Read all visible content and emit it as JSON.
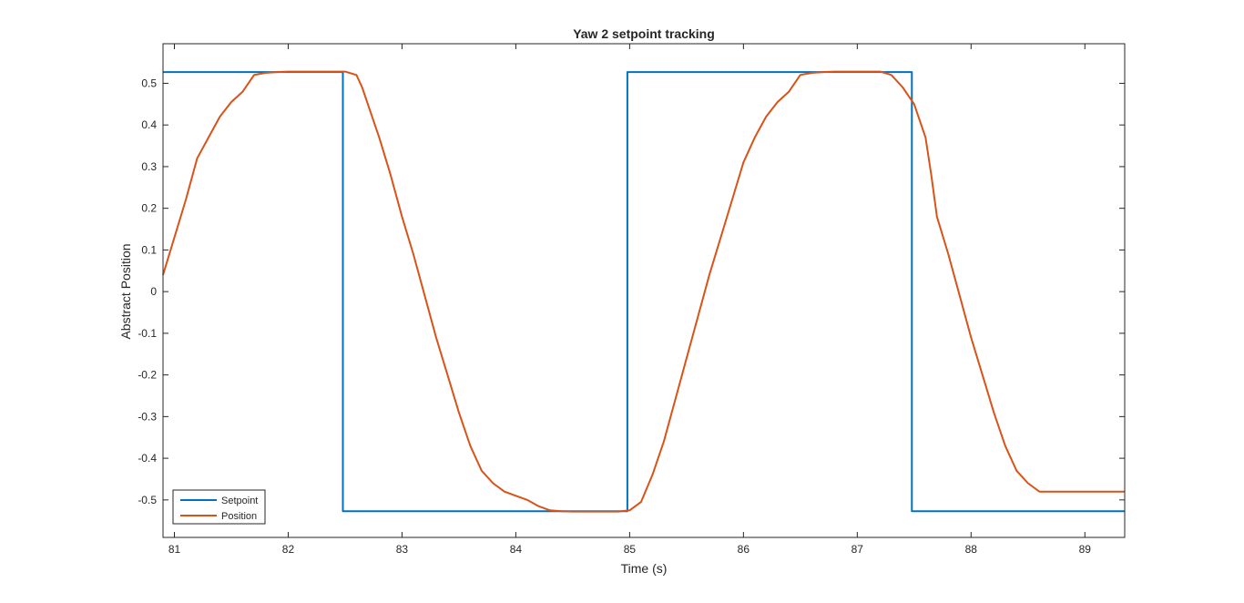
{
  "chart_data": {
    "type": "line",
    "title": "Yaw 2 setpoint tracking",
    "xlabel": "Time (s)",
    "ylabel": "Abstract Position",
    "xlim": [
      80.9,
      89.35
    ],
    "ylim": [
      -0.59,
      0.595
    ],
    "xticks": [
      81,
      82,
      83,
      84,
      85,
      86,
      87,
      88,
      89
    ],
    "xtick_labels": [
      "81",
      "82",
      "83",
      "84",
      "85",
      "86",
      "87",
      "88",
      "89"
    ],
    "yticks": [
      0.5,
      0.4,
      0.3,
      0.2,
      0.1,
      0,
      -0.1,
      -0.2,
      -0.3,
      -0.4,
      -0.5
    ],
    "ytick_labels": [
      "0.5",
      "0.4",
      "0.3",
      "0.2",
      "0.1",
      "0",
      "-0.1",
      "-0.2",
      "-0.3",
      "-0.4",
      "-0.5"
    ],
    "grid": false,
    "legend_position": "bottom-left",
    "series": [
      {
        "name": "Setpoint",
        "color": "#0072BD",
        "x": [
          80.9,
          82.48,
          82.48,
          84.98,
          84.98,
          87.48,
          87.48,
          89.35
        ],
        "y": [
          0.527,
          0.527,
          -0.527,
          -0.527,
          0.527,
          0.527,
          -0.527,
          -0.527
        ]
      },
      {
        "name": "Position",
        "color": "#D95319",
        "x": [
          80.9,
          81.0,
          81.1,
          81.2,
          81.3,
          81.4,
          81.5,
          81.6,
          81.7,
          81.8,
          81.9,
          82.0,
          82.1,
          82.2,
          82.3,
          82.4,
          82.5,
          82.6,
          82.65,
          82.7,
          82.8,
          82.9,
          83.0,
          83.1,
          83.2,
          83.3,
          83.4,
          83.5,
          83.6,
          83.7,
          83.8,
          83.9,
          84.0,
          84.1,
          84.2,
          84.3,
          84.4,
          84.5,
          84.6,
          84.7,
          84.8,
          84.9,
          85.0,
          85.1,
          85.2,
          85.3,
          85.4,
          85.5,
          85.6,
          85.7,
          85.8,
          85.9,
          86.0,
          86.1,
          86.2,
          86.3,
          86.4,
          86.5,
          86.6,
          86.7,
          86.8,
          86.9,
          87.0,
          87.1,
          87.2,
          87.3,
          87.4,
          87.5,
          87.6,
          87.65,
          87.7,
          87.8,
          87.9,
          88.0,
          88.1,
          88.2,
          88.3,
          88.4,
          88.5,
          88.6,
          88.7,
          88.8,
          88.9,
          89.0,
          89.1,
          89.2,
          89.35
        ],
        "y": [
          0.04,
          0.13,
          0.22,
          0.32,
          0.37,
          0.42,
          0.455,
          0.48,
          0.52,
          0.525,
          0.527,
          0.528,
          0.528,
          0.528,
          0.528,
          0.528,
          0.528,
          0.52,
          0.49,
          0.45,
          0.37,
          0.28,
          0.18,
          0.09,
          -0.01,
          -0.11,
          -0.2,
          -0.29,
          -0.37,
          -0.43,
          -0.46,
          -0.48,
          -0.49,
          -0.5,
          -0.515,
          -0.525,
          -0.527,
          -0.528,
          -0.528,
          -0.528,
          -0.528,
          -0.528,
          -0.525,
          -0.505,
          -0.44,
          -0.36,
          -0.26,
          -0.16,
          -0.06,
          0.04,
          0.13,
          0.22,
          0.31,
          0.37,
          0.42,
          0.455,
          0.48,
          0.52,
          0.525,
          0.527,
          0.528,
          0.528,
          0.528,
          0.528,
          0.528,
          0.52,
          0.49,
          0.45,
          0.37,
          0.28,
          0.18,
          0.09,
          -0.01,
          -0.11,
          -0.2,
          -0.29,
          -0.37,
          -0.43,
          -0.46,
          -0.48,
          -0.48,
          -0.48,
          -0.48,
          -0.48,
          -0.48,
          -0.48,
          -0.48
        ]
      }
    ]
  }
}
